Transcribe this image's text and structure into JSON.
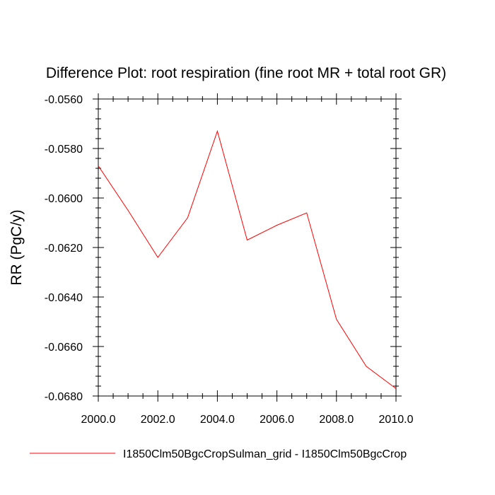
{
  "chart_data": {
    "type": "line",
    "title": "Difference Plot: root respiration (fine root MR + total root GR)",
    "xlabel": "",
    "ylabel": "RR  (PgC/y)",
    "xlim": [
      2000,
      2010
    ],
    "ylim": [
      -0.068,
      -0.056
    ],
    "x_ticks": [
      2000,
      2002,
      2004,
      2006,
      2008,
      2010
    ],
    "x_tick_labels": [
      "2000.0",
      "2002.0",
      "2004.0",
      "2006.0",
      "2008.0",
      "2010.0"
    ],
    "y_ticks": [
      -0.056,
      -0.058,
      -0.06,
      -0.062,
      -0.064,
      -0.066,
      -0.068
    ],
    "y_tick_labels": [
      "-0.0560",
      "-0.0580",
      "-0.0600",
      "-0.0620",
      "-0.0640",
      "-0.0660",
      "-0.0680"
    ],
    "grid": false,
    "legend_position": "bottom",
    "series": [
      {
        "name": "I1850Clm50BgcCropSulman_grid - I1850Clm50BgcCrop",
        "color": "#ff0000",
        "x": [
          2000,
          2001,
          2002,
          2003,
          2004,
          2005,
          2006,
          2007,
          2008,
          2009,
          2010
        ],
        "y": [
          -0.0587,
          -0.0605,
          -0.0624,
          -0.0608,
          -0.0573,
          -0.0617,
          -0.0611,
          -0.0606,
          -0.0649,
          -0.0668,
          -0.0677
        ]
      }
    ]
  }
}
